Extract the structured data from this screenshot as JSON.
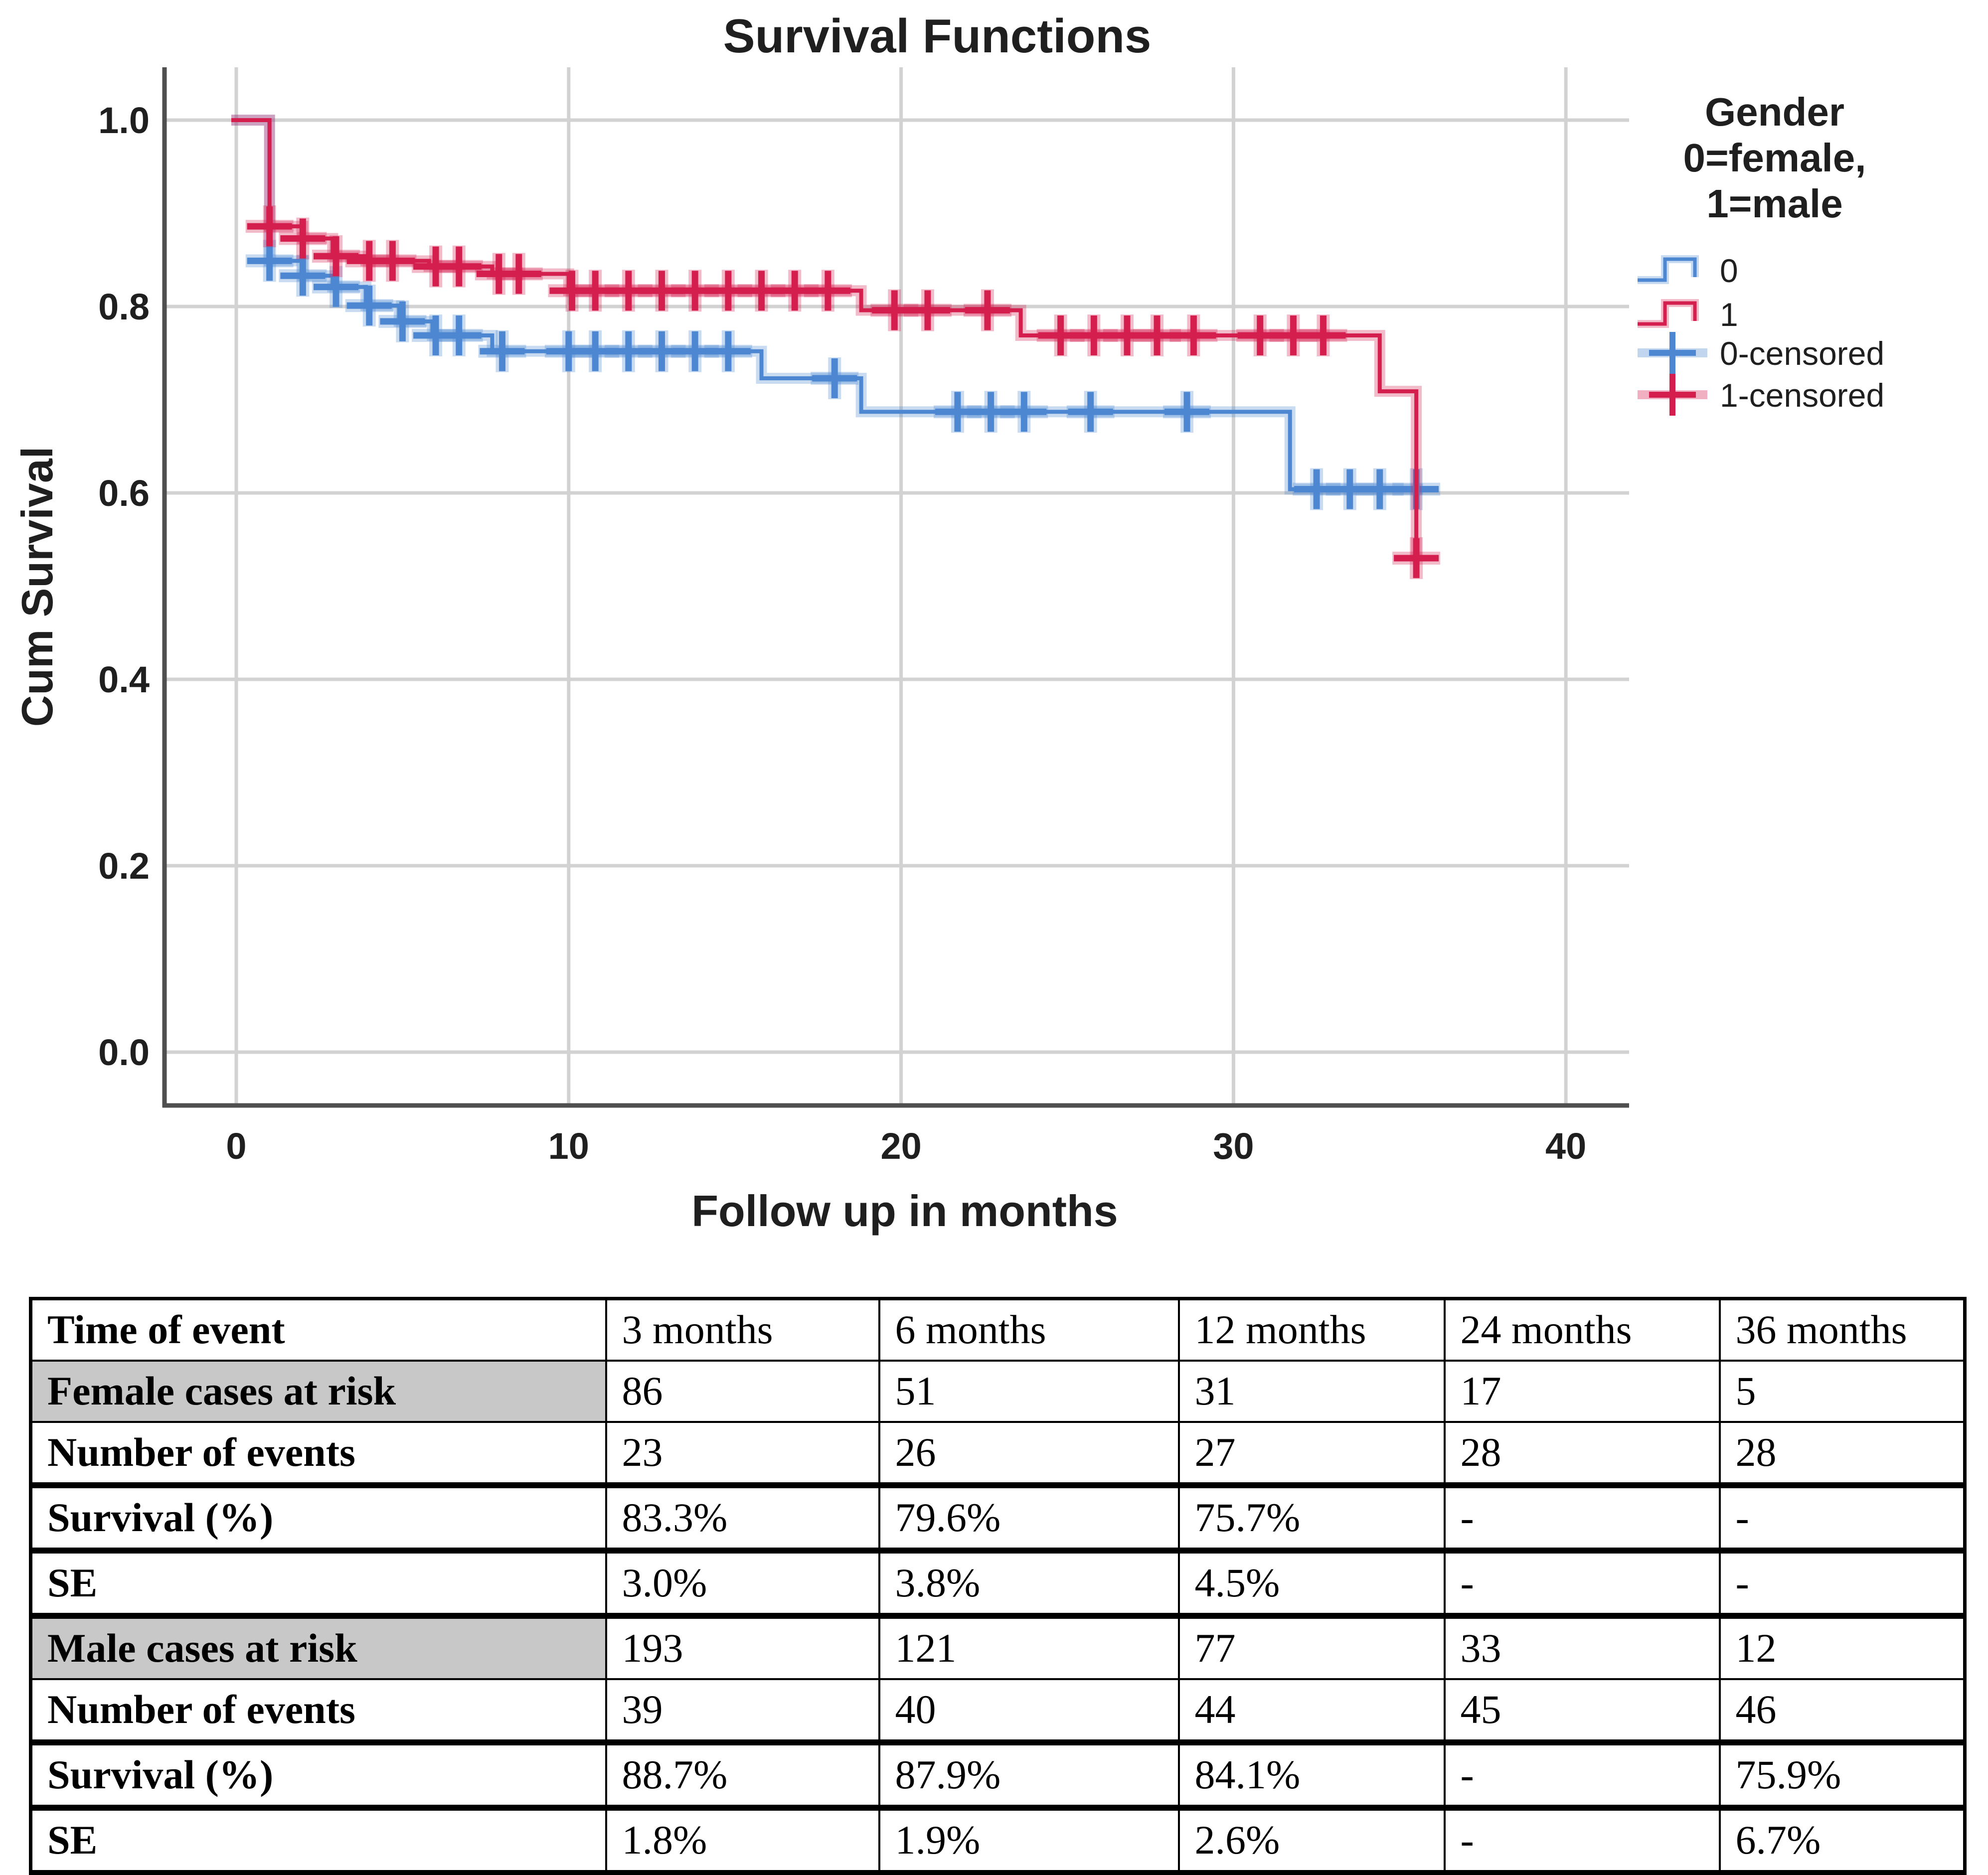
{
  "chart": {
    "title": "Survival Functions",
    "x_axis": {
      "label": "Follow up in months",
      "ticks": [
        "0",
        "10",
        "20",
        "30",
        "40"
      ],
      "tick_values": [
        0,
        10,
        20,
        30,
        40
      ]
    },
    "y_axis": {
      "label": "Cum Survival",
      "ticks": [
        "1.0",
        "0.8",
        "0.6",
        "0.4",
        "0.2",
        "0.0"
      ],
      "tick_values": [
        1.0,
        0.8,
        0.6,
        0.4,
        0.2,
        0.0
      ]
    },
    "legend": {
      "title_lines": [
        "Gender",
        "0=female,",
        "1=male"
      ],
      "items": [
        {
          "label": "0",
          "glyph": "step-line",
          "color": "#4d87d2"
        },
        {
          "label": "1",
          "glyph": "step-line",
          "color": "#d41e4e"
        },
        {
          "label": "0-censored",
          "glyph": "censor-cross",
          "color": "#4d87d2"
        },
        {
          "label": "1-censored",
          "glyph": "censor-cross",
          "color": "#d41e4e"
        }
      ]
    },
    "colors": {
      "female": "#4d87d2",
      "male": "#d41e4e",
      "gridline": "#d2d2d2",
      "axis": "#4f4f4f",
      "text": "#1f1f1f"
    }
  },
  "chart_data": {
    "type": "line",
    "subtype": "kaplan-meier-step",
    "title": "Survival Functions",
    "xlabel": "Follow up in months",
    "ylabel": "Cum Survival",
    "xlim": [
      -2.2,
      42
    ],
    "ylim": [
      0.0,
      1.05
    ],
    "grid": true,
    "legend_position": "right",
    "series": [
      {
        "name": "0 (female)",
        "color": "#4d87d2",
        "steps": [
          [
            0,
            1.0
          ],
          [
            1,
            0.849
          ],
          [
            2,
            0.833
          ],
          [
            2.9,
            0.821
          ],
          [
            3.9,
            0.801
          ],
          [
            4.9,
            0.784
          ],
          [
            5.9,
            0.769
          ],
          [
            7.7,
            0.752
          ],
          [
            15.8,
            0.723
          ],
          [
            18.8,
            0.687
          ],
          [
            31.7,
            0.604
          ]
        ],
        "end_t": 35.7,
        "censors": [
          [
            1,
            0.849
          ],
          [
            2,
            0.833
          ],
          [
            3,
            0.821
          ],
          [
            4,
            0.801
          ],
          [
            5,
            0.784
          ],
          [
            6,
            0.769
          ],
          [
            6.7,
            0.769
          ],
          [
            8,
            0.752
          ],
          [
            10,
            0.752
          ],
          [
            10.8,
            0.752
          ],
          [
            11.8,
            0.752
          ],
          [
            12.8,
            0.752
          ],
          [
            13.8,
            0.752
          ],
          [
            14.8,
            0.752
          ],
          [
            18,
            0.723
          ],
          [
            21.7,
            0.687
          ],
          [
            22.7,
            0.687
          ],
          [
            23.7,
            0.687
          ],
          [
            25.7,
            0.687
          ],
          [
            28.6,
            0.687
          ],
          [
            32.5,
            0.604
          ],
          [
            33.5,
            0.604
          ],
          [
            34.4,
            0.604
          ],
          [
            35.5,
            0.604
          ]
        ]
      },
      {
        "name": "1 (male)",
        "color": "#d41e4e",
        "steps": [
          [
            0,
            1.0
          ],
          [
            1,
            0.886
          ],
          [
            2,
            0.873
          ],
          [
            2.9,
            0.854
          ],
          [
            3.9,
            0.849
          ],
          [
            5.8,
            0.843
          ],
          [
            7.7,
            0.835
          ],
          [
            10,
            0.817
          ],
          [
            18.8,
            0.796
          ],
          [
            23.6,
            0.769
          ],
          [
            34.4,
            0.709
          ],
          [
            35.5,
            0.53
          ]
        ],
        "end_t": 35.5,
        "censors": [
          [
            1,
            0.886
          ],
          [
            2,
            0.873
          ],
          [
            3,
            0.854
          ],
          [
            4,
            0.849
          ],
          [
            4.7,
            0.849
          ],
          [
            6,
            0.843
          ],
          [
            6.7,
            0.843
          ],
          [
            7.9,
            0.835
          ],
          [
            8.5,
            0.835
          ],
          [
            10.1,
            0.817
          ],
          [
            10.8,
            0.817
          ],
          [
            11.8,
            0.817
          ],
          [
            12.8,
            0.817
          ],
          [
            13.8,
            0.817
          ],
          [
            14.8,
            0.817
          ],
          [
            15.8,
            0.817
          ],
          [
            16.8,
            0.817
          ],
          [
            17.8,
            0.817
          ],
          [
            19.8,
            0.796
          ],
          [
            20.8,
            0.796
          ],
          [
            22.6,
            0.796
          ],
          [
            24.8,
            0.769
          ],
          [
            25.8,
            0.769
          ],
          [
            26.8,
            0.769
          ],
          [
            27.7,
            0.769
          ],
          [
            28.8,
            0.769
          ],
          [
            30.8,
            0.769
          ],
          [
            31.8,
            0.769
          ],
          [
            32.7,
            0.769
          ],
          [
            35.5,
            0.53
          ]
        ]
      }
    ]
  },
  "table": {
    "columns": [
      "Time of event",
      "3 months",
      "6 months",
      "12 months",
      "24 months",
      "36 months"
    ],
    "rows": [
      {
        "label": "Female cases at risk",
        "shaded": true,
        "thick_top": false,
        "values": [
          "86",
          "51",
          "31",
          "17",
          "5"
        ]
      },
      {
        "label": "Number of events",
        "shaded": false,
        "thick_top": false,
        "values": [
          "23",
          "26",
          "27",
          "28",
          "28"
        ]
      },
      {
        "label": "Survival (%)",
        "shaded": false,
        "thick_top": true,
        "values": [
          "83.3%",
          "79.6%",
          "75.7%",
          "-",
          "-"
        ]
      },
      {
        "label": "SE",
        "shaded": false,
        "thick_top": true,
        "values": [
          "3.0%",
          "3.8%",
          "4.5%",
          "-",
          "-"
        ]
      },
      {
        "label": "Male cases at risk",
        "shaded": true,
        "thick_top": true,
        "values": [
          "193",
          "121",
          "77",
          "33",
          "12"
        ]
      },
      {
        "label": "Number of events",
        "shaded": false,
        "thick_top": false,
        "values": [
          "39",
          "40",
          "44",
          "45",
          "46"
        ]
      },
      {
        "label": "Survival (%)",
        "shaded": false,
        "thick_top": true,
        "values": [
          "88.7%",
          "87.9%",
          "84.1%",
          "-",
          "75.9%"
        ]
      },
      {
        "label": "SE",
        "shaded": false,
        "thick_top": true,
        "values": [
          "1.8%",
          "1.9%",
          "2.6%",
          "-",
          "6.7%"
        ]
      }
    ]
  }
}
